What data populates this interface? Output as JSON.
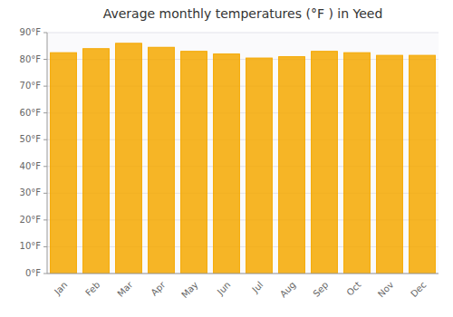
{
  "chart_data": {
    "type": "bar",
    "title": "Average monthly temperatures (°F ) in Yeed",
    "categories": [
      "Jan",
      "Feb",
      "Mar",
      "Apr",
      "May",
      "Jun",
      "Jul",
      "Aug",
      "Sep",
      "Oct",
      "Nov",
      "Dec"
    ],
    "values": [
      82.5,
      84.0,
      86.0,
      84.5,
      83.0,
      82.0,
      80.5,
      81.0,
      83.0,
      82.5,
      81.5,
      81.5
    ],
    "color": "#F5A800",
    "ylim": [
      0,
      90
    ],
    "yticks": [
      {
        "value": 0,
        "label": "0°F"
      },
      {
        "value": 10,
        "label": "10°F"
      },
      {
        "value": 20,
        "label": "20°F"
      },
      {
        "value": 30,
        "label": "30°F"
      },
      {
        "value": 40,
        "label": "40°F"
      },
      {
        "value": 50,
        "label": "50°F"
      },
      {
        "value": 60,
        "label": "60°F"
      },
      {
        "value": 70,
        "label": "70°F"
      },
      {
        "value": 80,
        "label": "80°F"
      },
      {
        "value": 90,
        "label": "90°F"
      }
    ],
    "grid": true
  }
}
